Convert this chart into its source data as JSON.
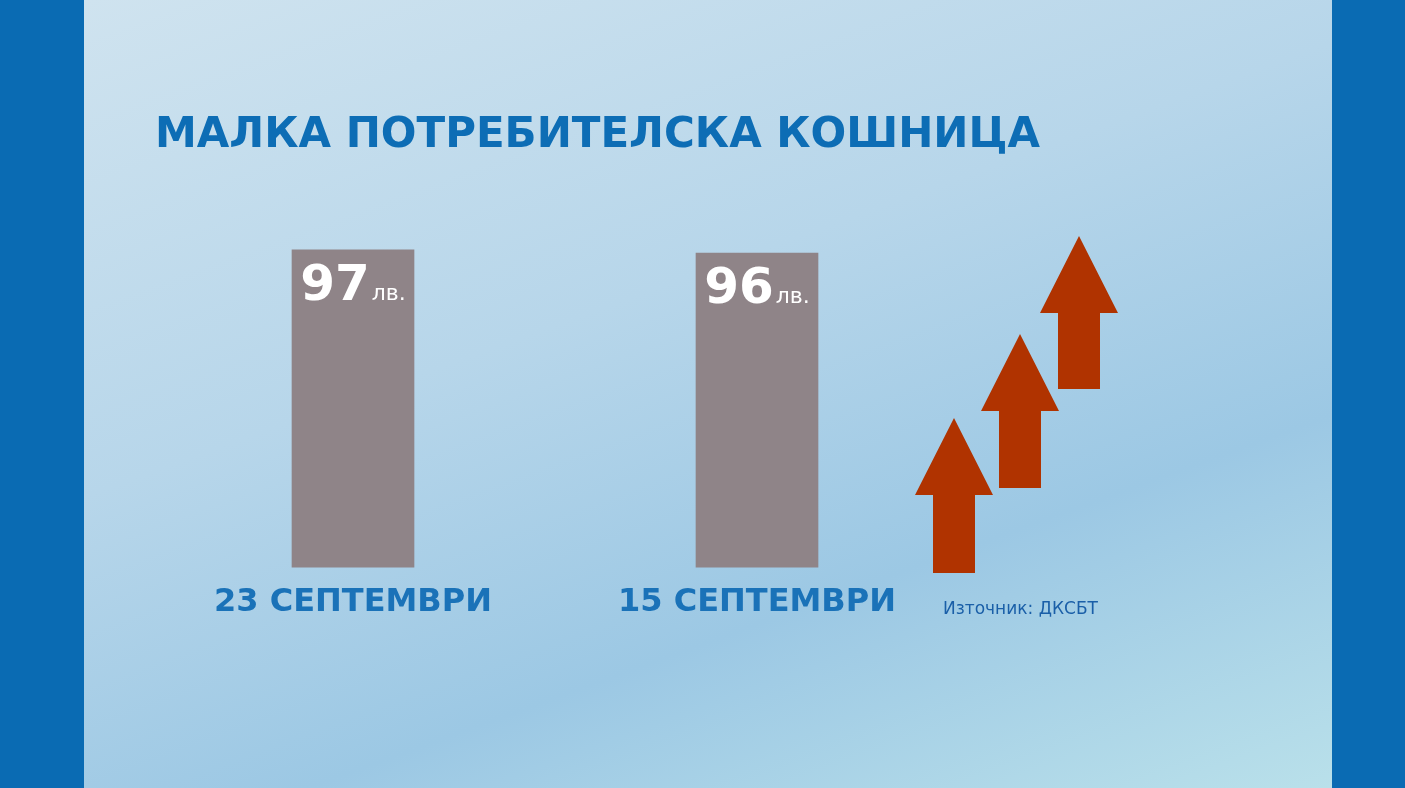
{
  "chart_data": {
    "type": "bar",
    "title": "МАЛКА ПОТРЕБИТЕЛСКА КОШНИЦА",
    "categories": [
      "23 СЕПТЕМВРИ",
      "15 СЕПТЕМВРИ"
    ],
    "values": [
      97,
      96
    ],
    "color": "#8f8488",
    "value_labels": [
      "97лв.",
      "96лв."
    ],
    "annotations": [
      "Източник: ДКСБТ"
    ]
  }
}
